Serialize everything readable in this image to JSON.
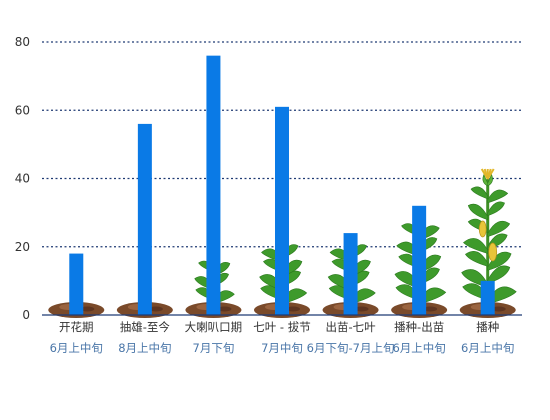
{
  "chart_data": {
    "type": "bar",
    "title": "",
    "xlabel": "",
    "ylabel": "",
    "ylim": [
      0,
      80
    ],
    "yticks": [
      0,
      20,
      40,
      60,
      80
    ],
    "grid": "horizontal-dotted",
    "bar_color": "#0a7ae6",
    "grid_color": "#1f3a73",
    "categories": [
      "开花期",
      "抽雄-至今",
      "大喇叭口期",
      "七叶 - 拔节",
      "出苗-七叶",
      "播种-出苗",
      "播种"
    ],
    "dates": [
      "6月上中旬",
      "8月上中旬",
      "7月下旬",
      "7月中旬",
      "6月下旬-7月上旬",
      "6月上中旬",
      "6月上中旬"
    ],
    "values": [
      18,
      56,
      76,
      61,
      24,
      32,
      10
    ],
    "plant_stages": [
      "seed",
      "sprout",
      "small-plant",
      "medium-plant",
      "medium-plant",
      "tall-plant",
      "tasseled-plant"
    ]
  }
}
